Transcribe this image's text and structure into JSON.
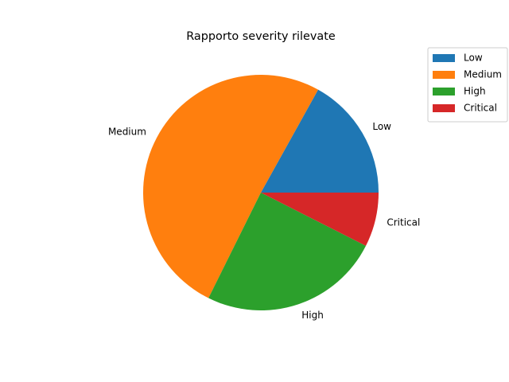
{
  "chart_data": {
    "type": "pie",
    "title": "Rapporto severity rilevate",
    "categories": [
      "Low",
      "Medium",
      "High",
      "Critical"
    ],
    "values": [
      17,
      51,
      25,
      7.5
    ],
    "colors": [
      "#1f77b4",
      "#ff7f0e",
      "#2ca02c",
      "#d62728"
    ],
    "start_angle": 0,
    "direction": "counterclockwise",
    "legend": {
      "placement": "top-right",
      "entries": [
        "Low",
        "Medium",
        "High",
        "Critical"
      ]
    }
  }
}
